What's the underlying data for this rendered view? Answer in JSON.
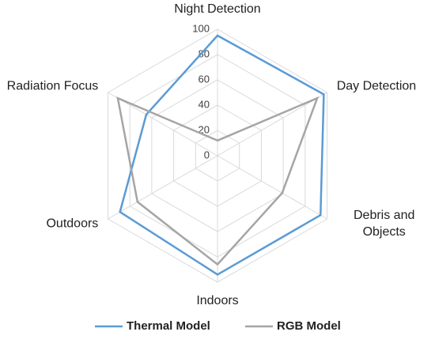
{
  "chart_data": {
    "type": "radar",
    "categories": [
      "Night Detection",
      "Day Detection",
      "Debris and Objects",
      "Indoors",
      "Outdoors",
      "Radiation Focus"
    ],
    "series": [
      {
        "name": "Thermal Model",
        "color": "#5b9bd5",
        "values": [
          95,
          97,
          94,
          94,
          89,
          65
        ]
      },
      {
        "name": "RGB Model",
        "color": "#a5a5a5",
        "values": [
          12,
          91,
          59,
          86,
          73,
          91
        ]
      }
    ],
    "ylim": [
      0,
      100
    ],
    "yticks": [
      0,
      20,
      40,
      60,
      80,
      100
    ],
    "grid": true,
    "legend": "bottom"
  }
}
